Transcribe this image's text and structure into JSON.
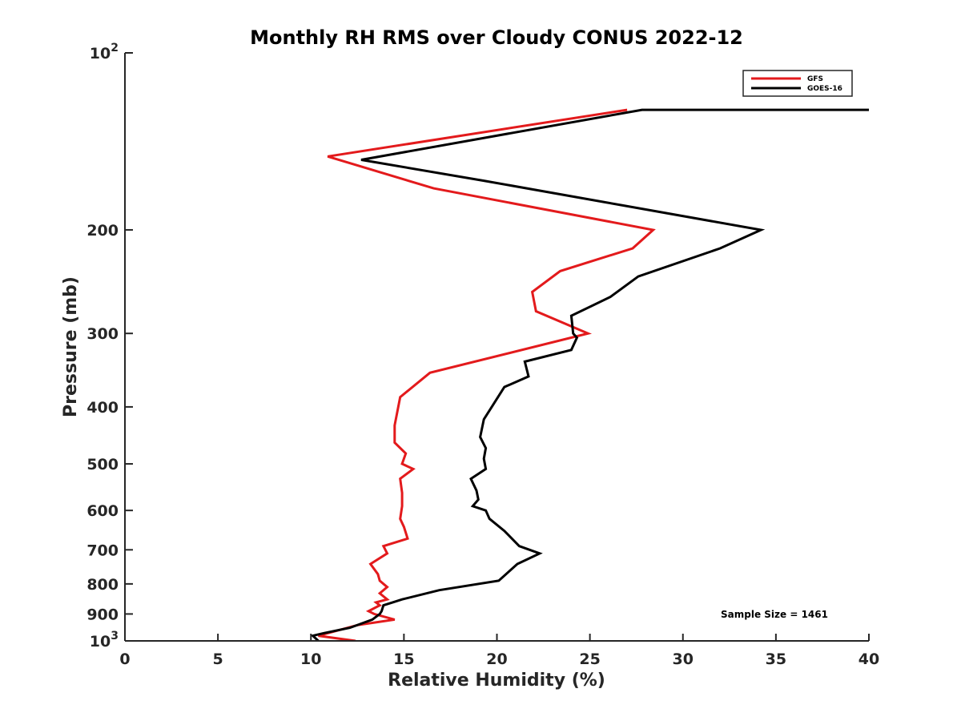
{
  "chart_data": {
    "type": "line",
    "title": "Monthly RH RMS over Cloudy CONUS  2022-12",
    "xlabel": "Relative Humidity (%)",
    "ylabel": "Pressure (mb)",
    "xlim": [
      0,
      40
    ],
    "ylim": [
      100,
      1000
    ],
    "yscale": "log",
    "yreversed": true,
    "x_ticks": [
      0,
      5,
      10,
      15,
      20,
      25,
      30,
      35,
      40
    ],
    "y_ticks": [
      {
        "value": 100,
        "label": "10",
        "sup": "2"
      },
      {
        "value": 200,
        "label": "200"
      },
      {
        "value": 300,
        "label": "300"
      },
      {
        "value": 400,
        "label": "400"
      },
      {
        "value": 500,
        "label": "500"
      },
      {
        "value": 600,
        "label": "600"
      },
      {
        "value": 700,
        "label": "700"
      },
      {
        "value": 800,
        "label": "800"
      },
      {
        "value": 900,
        "label": "900"
      },
      {
        "value": 1000,
        "label": "10",
        "sup": "3"
      }
    ],
    "legend_position": "top-right",
    "annotation": "Sample Size = 1461",
    "series": [
      {
        "name": "GFS",
        "color": "#e31a1c",
        "x": [
          27.0,
          10.9,
          16.6,
          28.4,
          27.3,
          23.4,
          21.9,
          22.1,
          24.9,
          16.4,
          14.8,
          14.5,
          14.5,
          15.1,
          14.9,
          15.5,
          14.8,
          14.9,
          14.9,
          14.8,
          15.0,
          15.2,
          13.9,
          14.1,
          13.2,
          13.6,
          13.7,
          14.1,
          13.7,
          14.1,
          13.5,
          13.7,
          13.1,
          13.4,
          14.5,
          12.5,
          10.4,
          12.4
        ],
        "y": [
          125,
          150,
          170,
          200,
          215,
          235,
          255,
          275,
          300,
          350,
          385,
          430,
          460,
          480,
          500,
          510,
          530,
          560,
          590,
          620,
          640,
          670,
          690,
          710,
          740,
          770,
          790,
          810,
          830,
          850,
          860,
          870,
          890,
          900,
          920,
          940,
          980,
          1000
        ]
      },
      {
        "name": "GOES-16",
        "color": "#000000",
        "x": [
          40.0,
          27.8,
          12.7,
          19.3,
          34.2,
          32.0,
          27.6,
          26.1,
          24.0,
          24.1,
          24.3,
          24.0,
          21.5,
          21.7,
          20.4,
          19.3,
          19.1,
          19.4,
          19.3,
          19.4,
          18.6,
          18.9,
          19.0,
          18.7,
          19.4,
          19.6,
          20.4,
          21.2,
          22.3,
          21.1,
          20.1,
          16.9,
          14.9,
          14.4,
          13.9,
          13.8,
          13.7,
          13.3,
          12.1,
          10.7,
          10.1,
          10.4
        ],
        "y": [
          125,
          125,
          152,
          165,
          200,
          215,
          240,
          260,
          280,
          300,
          305,
          320,
          335,
          355,
          370,
          420,
          450,
          470,
          490,
          510,
          530,
          555,
          575,
          590,
          600,
          620,
          650,
          690,
          710,
          740,
          790,
          820,
          850,
          860,
          870,
          890,
          900,
          920,
          950,
          970,
          980,
          1000
        ]
      }
    ]
  }
}
